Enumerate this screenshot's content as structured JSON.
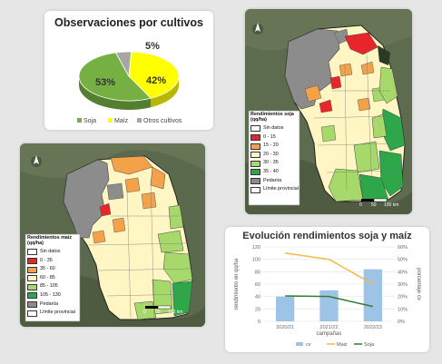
{
  "pie_panel": {
    "title": "Observaciones por cultivos"
  },
  "map_soja": {
    "legend_title": "Rendimientos soja (qq/ha)",
    "legend_items": [
      {
        "label": "Sin datos",
        "color": "#ffffff"
      },
      {
        "label": "0 - 15",
        "color": "#e8262a"
      },
      {
        "label": "15 - 20",
        "color": "#f4a24a"
      },
      {
        "label": "20 - 30",
        "color": "#fff6c4"
      },
      {
        "label": "30 - 35",
        "color": "#a6d96a"
      },
      {
        "label": "35 - 40",
        "color": "#2ea64a"
      },
      {
        "label": "Pedanía",
        "color": "#8c8c8c"
      },
      {
        "label": "Límite provincial",
        "color": "#ffffff"
      }
    ],
    "scale": {
      "zero": "0",
      "mid": "50",
      "end": "100 km"
    }
  },
  "map_maiz": {
    "legend_title": "Rendimientos maíz (qq/ha)",
    "legend_items": [
      {
        "label": "Sin datos",
        "color": "#ffffff"
      },
      {
        "label": "0 - 35",
        "color": "#e8262a"
      },
      {
        "label": "35 - 60",
        "color": "#f4a24a"
      },
      {
        "label": "60 - 85",
        "color": "#fff6c4"
      },
      {
        "label": "85 - 105",
        "color": "#a6d96a"
      },
      {
        "label": "105 - 130",
        "color": "#2ea64a"
      },
      {
        "label": "Pedanía",
        "color": "#8c8c8c"
      },
      {
        "label": "Límite provincial",
        "color": "#ffffff"
      }
    ],
    "scale": {
      "zero": "0",
      "mid": "50",
      "end": "100 km"
    }
  },
  "line_panel": {
    "title": "Evolución rendimientos soja y  maíz"
  },
  "chart_data": [
    {
      "type": "pie",
      "title": "Observaciones por cultivos",
      "categories": [
        "Soja",
        "Maíz",
        "Otros cultivos"
      ],
      "values": [
        53,
        42,
        5
      ],
      "labels": [
        "53%",
        "42%",
        "5%"
      ],
      "colors": [
        "#76b043",
        "#ffff00",
        "#a6a6a6"
      ],
      "legend": "bottom"
    },
    {
      "type": "bar",
      "title": "Evolución rendimientos soja y  maíz",
      "categories": [
        "2020/21",
        "2021/22",
        "2022/23"
      ],
      "xlabel": "campañas",
      "ylabel": "rendimiento en qq/ha",
      "y2label": "porcentaje cv",
      "ylim": [
        0,
        120
      ],
      "yticks": [
        "0",
        "20",
        "40",
        "60",
        "80",
        "100",
        "120"
      ],
      "y2lim": [
        0,
        60
      ],
      "y2ticks": [
        "0%",
        "10%",
        "20%",
        "30%",
        "40%",
        "50%",
        "60%"
      ],
      "grid": true,
      "legend": "bottom",
      "series": [
        {
          "name": "cv",
          "type": "bar",
          "axis": "right",
          "values": [
            20,
            25,
            42
          ],
          "color": "#9dc3e6"
        },
        {
          "name": "Maiz",
          "type": "line",
          "axis": "left",
          "values": [
            110,
            100,
            60
          ],
          "color": "#f4b942"
        },
        {
          "name": "Soja",
          "type": "line",
          "axis": "left",
          "values": [
            41,
            40,
            24
          ],
          "color": "#2f7d32"
        }
      ]
    }
  ]
}
